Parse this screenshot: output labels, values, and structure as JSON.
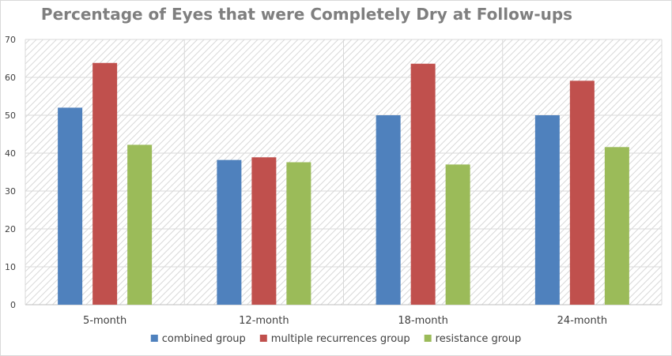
{
  "chart_data": {
    "type": "bar",
    "title": "Percentage of Eyes that were Completely Dry at Follow-ups",
    "xlabel": "",
    "ylabel": "",
    "categories": [
      "5-month",
      "12-month",
      "18-month",
      "24-month"
    ],
    "series": [
      {
        "name": "combined group",
        "color": "#4f81bd",
        "values": [
          52,
          38.2,
          50,
          50
        ]
      },
      {
        "name": "multiple recurrences group",
        "color": "#c0504d",
        "values": [
          63.8,
          38.9,
          63.6,
          59.1
        ]
      },
      {
        "name": "resistance group",
        "color": "#9bbb59",
        "values": [
          42.2,
          37.6,
          37,
          41.6
        ]
      }
    ],
    "ylim": [
      0,
      70
    ],
    "yticks": [
      0,
      10,
      20,
      30,
      40,
      50,
      60,
      70
    ],
    "grid": true,
    "legend_position": "bottom"
  }
}
